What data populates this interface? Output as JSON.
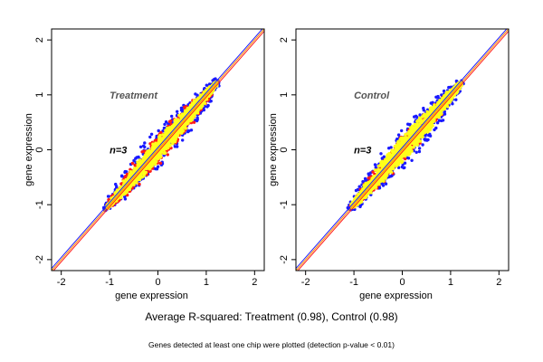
{
  "captions": {
    "main": "Average R-squared: Treatment (0.98), Control (0.98)",
    "sub": "Genes detected at least one chip were plotted (detection p-value < 0.01)"
  },
  "colors": {
    "background": "#ffffff",
    "axis": "#000000",
    "series_blue": "#1a1aff",
    "series_red": "#ff1a1a",
    "series_yellow": "#ffff1a",
    "line_orange": "#ff8c00",
    "line_blue": "#2040ff",
    "line_red": "#e00000",
    "line_olive": "#999900"
  },
  "chart_data": [
    {
      "type": "scatter",
      "title": "Treatment",
      "annotation": "n=3",
      "xlabel": "gene expression",
      "ylabel": "gene expression",
      "xlim": [
        -2.2,
        2.2
      ],
      "ylim": [
        -2.2,
        2.2
      ],
      "xticks": [
        "-2",
        "-1",
        "0",
        "1",
        "2"
      ],
      "yticks": [
        "-2",
        "-1",
        "0",
        "1",
        "2"
      ],
      "grid": false,
      "legend": "none",
      "series": [
        {
          "color": "blue",
          "x_range": [
            -1.1,
            1.25
          ],
          "y_range": [
            -1.1,
            1.25
          ],
          "max_spread": 0.42
        },
        {
          "color": "red",
          "x_range": [
            -1.05,
            1.15
          ],
          "y_range": [
            -1.05,
            1.15
          ],
          "max_spread": 0.32
        },
        {
          "color": "yellow",
          "x_range": [
            -1.05,
            1.22
          ],
          "y_range": [
            -1.05,
            1.22
          ],
          "max_spread": 0.22
        }
      ],
      "reference_lines": [
        {
          "slope": 1,
          "intercept": 0,
          "color": "orange"
        },
        {
          "slope": 1,
          "intercept": 0.04,
          "color": "blue"
        },
        {
          "slope": 1,
          "intercept": -0.04,
          "color": "red"
        }
      ]
    },
    {
      "type": "scatter",
      "title": "Control",
      "annotation": "n=3",
      "xlabel": "gene expression",
      "ylabel": "gene expression",
      "xlim": [
        -2.2,
        2.2
      ],
      "ylim": [
        -2.2,
        2.2
      ],
      "xticks": [
        "-2",
        "-1",
        "0",
        "1",
        "2"
      ],
      "yticks": [
        "-2",
        "-1",
        "0",
        "1",
        "2"
      ],
      "grid": false,
      "legend": "none",
      "series": [
        {
          "color": "blue",
          "x_range": [
            -1.1,
            1.25
          ],
          "y_range": [
            -1.1,
            1.25
          ],
          "max_spread": 0.4
        },
        {
          "color": "red",
          "x_range": [
            -1.05,
            1.1
          ],
          "y_range": [
            -1.05,
            1.1
          ],
          "max_spread": 0.26
        },
        {
          "color": "yellow",
          "x_range": [
            -1.05,
            1.22
          ],
          "y_range": [
            -1.05,
            1.22
          ],
          "max_spread": 0.24
        }
      ],
      "reference_lines": [
        {
          "slope": 1,
          "intercept": 0,
          "color": "orange"
        },
        {
          "slope": 1,
          "intercept": 0.04,
          "color": "blue"
        },
        {
          "slope": 1,
          "intercept": -0.04,
          "color": "red"
        }
      ]
    }
  ]
}
